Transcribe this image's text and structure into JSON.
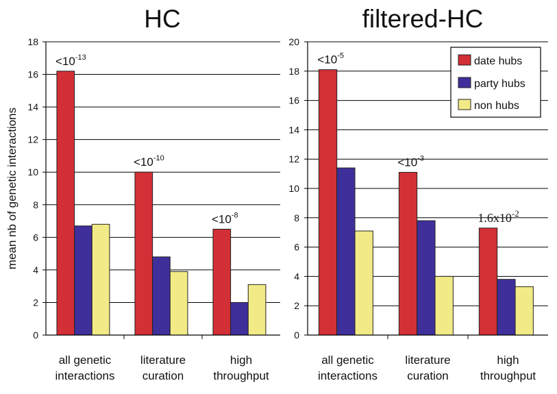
{
  "ylabel": "mean nb of genetic interactions",
  "colors": {
    "date_hubs": "#d32f36",
    "party_hubs": "#3f2f9a",
    "non_hubs": "#f2ea86",
    "bar_stroke": "#222222",
    "gridline": "#000000"
  },
  "legend": [
    "date hubs",
    "party hubs",
    "non hubs"
  ],
  "chart_data": [
    {
      "type": "bar",
      "title": "HC",
      "ylabel": "mean nb of genetic interactions",
      "ylim": [
        0,
        18
      ],
      "yticks": [
        0,
        2,
        4,
        6,
        8,
        10,
        12,
        14,
        16,
        18
      ],
      "grid": true,
      "categories": [
        [
          "all genetic",
          "interactions"
        ],
        [
          "literature",
          "curation"
        ],
        [
          "high",
          "throughput"
        ]
      ],
      "series": [
        {
          "name": "date hubs",
          "values": [
            16.2,
            10.0,
            6.5
          ]
        },
        {
          "name": "party hubs",
          "values": [
            6.7,
            4.8,
            2.0
          ]
        },
        {
          "name": "non hubs",
          "values": [
            6.8,
            3.9,
            3.1
          ]
        }
      ],
      "annotations": [
        {
          "base": "<10",
          "exp": "-13"
        },
        {
          "base": "<10",
          "exp": "-10"
        },
        {
          "base": "<10",
          "exp": "-8"
        }
      ]
    },
    {
      "type": "bar",
      "title": "filtered-HC",
      "ylim": [
        0,
        20
      ],
      "yticks": [
        0,
        2,
        4,
        6,
        8,
        10,
        12,
        14,
        16,
        18,
        20
      ],
      "grid": true,
      "legend_position": "top-right",
      "categories": [
        [
          "all genetic",
          "interactions"
        ],
        [
          "literature",
          "curation"
        ],
        [
          "high",
          "throughput"
        ]
      ],
      "series": [
        {
          "name": "date hubs",
          "values": [
            18.1,
            11.1,
            7.3
          ]
        },
        {
          "name": "party hubs",
          "values": [
            11.4,
            7.8,
            3.8
          ]
        },
        {
          "name": "non hubs",
          "values": [
            7.1,
            4.0,
            3.3
          ]
        }
      ],
      "annotations": [
        {
          "base": "<10",
          "exp": "-5"
        },
        {
          "base": "<10",
          "exp": "-3"
        },
        {
          "base": "1.6x10",
          "exp": "-2"
        }
      ]
    }
  ]
}
